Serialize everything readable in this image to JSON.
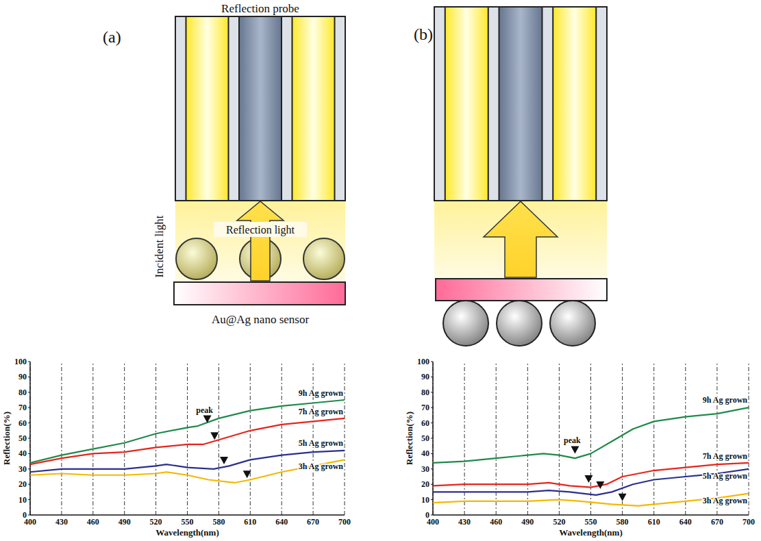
{
  "diagram": {
    "panels": [
      {
        "letter": "(a)",
        "probe_label": "Reflection probe",
        "incident_label": "Incident light",
        "reflection_label": "Reflection light",
        "sensor_label": "Au@Ag nano sensor"
      },
      {
        "letter": "(b)"
      }
    ]
  },
  "chart_data": [
    {
      "type": "line",
      "xlabel": "Wavelength(nm)",
      "ylabel": "Reflection(%)",
      "annotation": "peak",
      "xlim": [
        400,
        700
      ],
      "xticks": [
        400,
        430,
        460,
        490,
        520,
        550,
        580,
        610,
        640,
        670,
        700
      ],
      "ylim": [
        0,
        100
      ],
      "yticks": [
        0,
        10,
        20,
        30,
        40,
        50,
        60,
        70,
        80,
        90,
        100
      ],
      "grid": true,
      "series": [
        {
          "name": "9h Ag grown",
          "color": "#1e8a4a",
          "x": [
            400,
            430,
            460,
            490,
            520,
            550,
            560,
            580,
            610,
            640,
            670,
            700
          ],
          "values": [
            34,
            39,
            43,
            47,
            53,
            57,
            58,
            63,
            68,
            71,
            73,
            75
          ],
          "peak": [
            569,
            60
          ]
        },
        {
          "name": "7h Ag grown",
          "color": "#e8241c",
          "x": [
            400,
            430,
            460,
            490,
            520,
            550,
            565,
            580,
            610,
            640,
            670,
            700
          ],
          "values": [
            33,
            37,
            40,
            41,
            44,
            46,
            46,
            49,
            55,
            59,
            61,
            63
          ],
          "peak": [
            576,
            49
          ]
        },
        {
          "name": "5h Ag grown",
          "color": "#2b2f8f",
          "x": [
            400,
            430,
            460,
            490,
            520,
            530,
            550,
            575,
            590,
            610,
            640,
            670,
            700
          ],
          "values": [
            28,
            30,
            30,
            30,
            32,
            33,
            31,
            30,
            32,
            36,
            39,
            41,
            42
          ],
          "peak": [
            585,
            33
          ]
        },
        {
          "name": "3h Ag grown",
          "color": "#f5b800",
          "x": [
            400,
            430,
            460,
            490,
            520,
            530,
            550,
            570,
            595,
            610,
            640,
            670,
            700
          ],
          "values": [
            26,
            27,
            26,
            26,
            27,
            28,
            26,
            23,
            21,
            23,
            28,
            32,
            36
          ],
          "peak": [
            607,
            24
          ]
        }
      ]
    },
    {
      "type": "line",
      "xlabel": "Wavelength(nm)",
      "ylabel": "Reflection(%)",
      "annotation": "peak",
      "xlim": [
        400,
        700
      ],
      "xticks": [
        400,
        430,
        460,
        490,
        520,
        550,
        580,
        610,
        640,
        670,
        700
      ],
      "ylim": [
        0,
        100
      ],
      "yticks": [
        0,
        10,
        20,
        30,
        40,
        50,
        60,
        70,
        80,
        90,
        100
      ],
      "grid": true,
      "series": [
        {
          "name": "9h Ag grown",
          "color": "#1e8a4a",
          "x": [
            400,
            430,
            460,
            490,
            505,
            520,
            535,
            550,
            570,
            590,
            610,
            640,
            670,
            700
          ],
          "values": [
            34,
            35,
            37,
            39,
            40,
            39,
            37,
            40,
            48,
            56,
            61,
            64,
            66,
            70
          ],
          "peak": [
            535,
            40
          ]
        },
        {
          "name": "7h Ag grown",
          "color": "#e8241c",
          "x": [
            400,
            430,
            460,
            490,
            510,
            530,
            550,
            565,
            580,
            610,
            640,
            670,
            700
          ],
          "values": [
            19,
            20,
            20,
            20,
            21,
            19,
            18,
            20,
            25,
            29,
            31,
            33,
            34
          ],
          "peak": [
            548,
            21
          ]
        },
        {
          "name": "5h Ag grown",
          "color": "#2b2f8f",
          "x": [
            400,
            430,
            460,
            490,
            510,
            530,
            555,
            570,
            590,
            610,
            640,
            670,
            700
          ],
          "values": [
            15,
            15,
            15,
            15,
            16,
            15,
            13,
            15,
            20,
            23,
            25,
            27,
            30
          ],
          "peak": [
            559,
            17
          ]
        },
        {
          "name": "3h Ag grown",
          "color": "#f5b800",
          "x": [
            400,
            430,
            460,
            490,
            520,
            540,
            570,
            595,
            610,
            640,
            670,
            700
          ],
          "values": [
            8,
            9,
            9,
            9,
            10,
            9,
            7,
            6,
            7,
            9,
            11,
            14
          ],
          "peak": [
            580,
            9
          ]
        }
      ]
    }
  ]
}
